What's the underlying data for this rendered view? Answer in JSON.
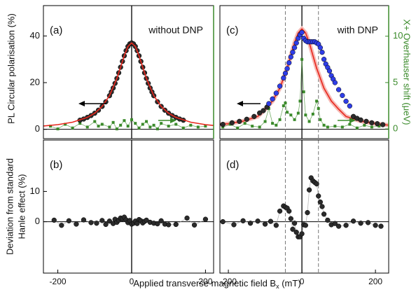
{
  "xlabel_parts": [
    "Applied transverse magnetic field B",
    "x",
    " (mT)"
  ],
  "chart_data": [
    {
      "type": "scatter",
      "panel_label": "(a)",
      "annotation": "without DNP",
      "ylabel": "PL Circular polarisation (%)",
      "xlim": [
        -239,
        222
      ],
      "ylim": [
        -4,
        53
      ],
      "yticks": [
        0,
        20,
        40
      ],
      "y2lim": [
        -1.05,
        13.3
      ],
      "y2color": "#3a8a2a",
      "series": [
        {
          "mode": "markers",
          "marker": "square",
          "color": "#3a8a2a",
          "axis": "y2",
          "x": [
            -220,
            -200,
            -180,
            -160,
            -140,
            -120,
            -100,
            -90,
            -80,
            -60,
            -50,
            -40,
            -30,
            -20,
            -10,
            0,
            10,
            20,
            30,
            40,
            50,
            60,
            70,
            80,
            100,
            120,
            140,
            160,
            180,
            200
          ],
          "values": [
            0.3,
            0,
            0.5,
            0.1,
            0.6,
            0.2,
            0.8,
            0.3,
            0.5,
            0.2,
            0.7,
            0,
            0.4,
            0.9,
            0.3,
            1.0,
            0.6,
            0.1,
            0.5,
            0.8,
            0.2,
            0.4,
            0,
            0.6,
            0.3,
            0.5,
            0.1,
            0.4,
            0.2,
            0.3
          ]
        },
        {
          "mode": "markers",
          "marker": "circle",
          "color": "#2b2b2b",
          "x": [
            -140,
            -130,
            -120,
            -110,
            -100,
            -90,
            -80,
            -70,
            -60,
            -55,
            -50,
            -45,
            -40,
            -35,
            -30,
            -25,
            -20,
            -15,
            -10,
            -5,
            0,
            5,
            10,
            15,
            20,
            25,
            30,
            35,
            40,
            45,
            50,
            55,
            60,
            70,
            80,
            90,
            100,
            110,
            120,
            130,
            140
          ],
          "values": [
            3.9,
            4.4,
            5.1,
            5.9,
            6.9,
            8.2,
            9.8,
            11.8,
            14.4,
            16.0,
            17.7,
            19.7,
            21.8,
            24.2,
            26.6,
            29.1,
            31.5,
            33.7,
            35.5,
            36.6,
            37,
            36.6,
            35.5,
            33.7,
            31.5,
            29.1,
            26.6,
            24.2,
            21.8,
            19.7,
            17.7,
            16.0,
            14.4,
            11.8,
            9.8,
            8.2,
            6.9,
            5.9,
            5.1,
            4.4,
            3.9
          ]
        },
        {
          "mode": "line",
          "color": "#e8261c",
          "x": [
            -239,
            -200,
            -160,
            -120,
            -100,
            -80,
            -60,
            -40,
            -30,
            -20,
            -10,
            0,
            10,
            20,
            30,
            40,
            60,
            80,
            100,
            120,
            160,
            200,
            222
          ],
          "values": [
            1.43,
            2.0,
            3.05,
            5.1,
            6.9,
            9.8,
            14.4,
            21.8,
            26.6,
            31.5,
            35.5,
            37,
            35.5,
            31.5,
            26.6,
            21.8,
            14.4,
            9.8,
            6.9,
            5.1,
            3.05,
            2.0,
            1.65
          ]
        }
      ]
    },
    {
      "type": "scatter",
      "panel_label": "(b)",
      "ylabel_lines": [
        "Deviation from standard",
        "Hanle effect (%)"
      ],
      "xlim": [
        -239,
        222
      ],
      "ylim": [
        -17,
        27
      ],
      "yticks": [
        0,
        10
      ],
      "xticks": [
        -200,
        0,
        200
      ],
      "series": [
        {
          "mode": "lines+markers",
          "marker": "circle",
          "color": "#2b2b2b",
          "x": [
            -210,
            -190,
            -170,
            -150,
            -130,
            -110,
            -95,
            -80,
            -70,
            -60,
            -50,
            -45,
            -40,
            -35,
            -30,
            -25,
            -20,
            -15,
            -10,
            -5,
            0,
            5,
            10,
            15,
            20,
            25,
            30,
            35,
            40,
            50,
            60,
            70,
            80,
            90,
            100,
            120,
            150,
            170,
            200
          ],
          "values": [
            0.5,
            -1.2,
            0.3,
            -0.8,
            0.6,
            -0.3,
            -0.5,
            0.4,
            -0.9,
            0.2,
            -0.6,
            0.8,
            -0.2,
            0.5,
            1.2,
            0.9,
            1.5,
            0.6,
            -0.3,
            0.4,
            -0.8,
            -0.5,
            0.2,
            -0.6,
            0.7,
            0.3,
            -0.4,
            0.1,
            0.5,
            -0.2,
            -0.5,
            -0.7,
            0.3,
            -0.8,
            -1.0,
            -0.9,
            1.2,
            -1.1,
            0.8
          ]
        }
      ]
    },
    {
      "type": "scatter",
      "panel_label": "(c)",
      "annotation": "with DNP",
      "y2label": "X+ Overhauser shift (μeV)",
      "xlim": [
        -223,
        236
      ],
      "ylim": [
        -4,
        53
      ],
      "y2lim": [
        -1.05,
        13.3
      ],
      "y2ticks": [
        0,
        5,
        10
      ],
      "y2color": "#3a8a2a",
      "dashed_lines": [
        -45,
        45
      ],
      "series": [
        {
          "mode": "line",
          "color": "#e8261c",
          "band": true,
          "x": [
            -223,
            -200,
            -160,
            -120,
            -100,
            -80,
            -60,
            -40,
            -30,
            -20,
            -10,
            0,
            10,
            20,
            30,
            40,
            60,
            80,
            100,
            120,
            160,
            200,
            236
          ],
          "values": [
            2.06,
            2.4,
            3.5,
            5.5,
            8.6,
            12.1,
            17.6,
            26.2,
            31.6,
            37.1,
            41.3,
            43,
            41.3,
            37.1,
            31.6,
            26.2,
            17.6,
            12.1,
            8.6,
            5.5,
            3.5,
            2.4,
            1.77
          ]
        },
        {
          "mode": "markers",
          "marker": "square",
          "color": "#3a8a2a",
          "axis": "y2",
          "x": [
            -215,
            -195,
            -175,
            -155,
            -135,
            -115,
            -100,
            -90,
            -80,
            -70,
            -60,
            -50,
            -45,
            -40,
            -30,
            -20,
            -10,
            -5,
            0,
            5,
            10,
            20,
            30,
            40,
            45,
            50,
            60,
            70,
            90,
            110,
            130,
            150,
            170,
            190,
            210
          ],
          "values": [
            0.2,
            0.5,
            0.1,
            0.6,
            0.3,
            0.2,
            0.8,
            2.2,
            0.6,
            0.4,
            1.0,
            2.5,
            2.8,
            1.8,
            1.5,
            1.0,
            1.7,
            3.0,
            7.5,
            4.0,
            1.5,
            0.8,
            1.6,
            3.0,
            2.2,
            1.0,
            0.4,
            0.2,
            0.3,
            0.2,
            0.5,
            0.1,
            0.4,
            0.2,
            0.3
          ]
        },
        {
          "mode": "markers",
          "marker": "circle",
          "color": "#2b2b2b",
          "x": [
            -215,
            -190,
            -170,
            -150,
            -130,
            -115,
            -105,
            -95,
            140,
            150,
            160,
            175,
            190,
            205,
            220
          ],
          "values": [
            2.1,
            2.8,
            3.4,
            4.3,
            5.5,
            7.0,
            8.0,
            9.5,
            5.5,
            4.7,
            4.0,
            3.4,
            2.8,
            2.4,
            2.0
          ]
        },
        {
          "mode": "markers",
          "marker": "circle",
          "color": "#2f3ee8",
          "x": [
            -90,
            -80,
            -70,
            -60,
            -50,
            -45,
            -40,
            -35,
            -30,
            -25,
            -20,
            -15,
            -10,
            -5,
            0,
            5,
            10,
            15,
            20,
            25,
            30,
            35,
            40,
            45,
            50,
            55,
            60,
            65,
            70,
            75,
            80,
            85,
            90,
            100,
            110,
            120,
            130
          ],
          "values": [
            11,
            13,
            15.5,
            18.5,
            22,
            24,
            26,
            28.5,
            31,
            33,
            35,
            37,
            39,
            40.5,
            41.5,
            39,
            38,
            37.5,
            37.5,
            37.5,
            37.5,
            37.5,
            37,
            36.5,
            35,
            33,
            30,
            28,
            26.5,
            25,
            23,
            21.5,
            20,
            17,
            14.5,
            12,
            10
          ]
        }
      ]
    },
    {
      "type": "scatter",
      "panel_label": "(d)",
      "xlim": [
        -223,
        236
      ],
      "ylim": [
        -17,
        27
      ],
      "xticks": [
        -200,
        0,
        200
      ],
      "dashed_lines": [
        -45,
        45
      ],
      "series": [
        {
          "mode": "lines+markers",
          "marker": "circle",
          "color": "#2b2b2b",
          "x": [
            -215,
            -185,
            -160,
            -140,
            -120,
            -100,
            -85,
            -70,
            -60,
            -50,
            -45,
            -40,
            -35,
            -30,
            -25,
            -20,
            -15,
            -10,
            -5,
            0,
            5,
            10,
            15,
            20,
            25,
            30,
            35,
            40,
            45,
            50,
            55,
            60,
            70,
            80,
            90,
            100,
            120,
            140,
            160,
            180,
            200,
            215
          ],
          "values": [
            0,
            -1.0,
            0.3,
            -0.5,
            0.2,
            -0.8,
            0.1,
            -1.2,
            3.5,
            5.2,
            4.8,
            4.5,
            3.5,
            1.0,
            -2.5,
            -0.5,
            -3.5,
            -5.0,
            -5.0,
            -4.0,
            -1.0,
            -1.2,
            3.0,
            10.5,
            14.5,
            13.5,
            13.0,
            12.5,
            8.5,
            6.5,
            5.0,
            2.5,
            0.5,
            -1.0,
            -0.6,
            -1.5,
            -1.2,
            0.2,
            -0.5,
            -0.3,
            -1.2,
            -1.5
          ]
        }
      ]
    }
  ]
}
